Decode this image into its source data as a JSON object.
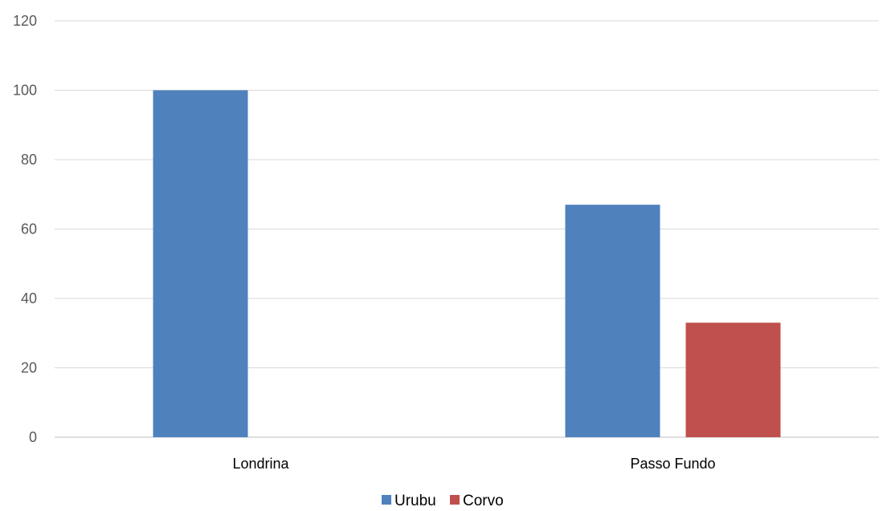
{
  "chart_data": {
    "type": "bar",
    "categories": [
      "Londrina",
      "Passo Fundo"
    ],
    "series": [
      {
        "name": "Urubu",
        "values": [
          100,
          67
        ],
        "color": "#4f81bd"
      },
      {
        "name": "Corvo",
        "values": [
          0,
          33
        ],
        "color": "#c0504d"
      }
    ],
    "ylim": [
      0,
      120
    ],
    "yticks": [
      0,
      20,
      40,
      60,
      80,
      100,
      120
    ],
    "grid": true,
    "legend": "bottom",
    "title": "",
    "xlabel": "",
    "ylabel": ""
  }
}
